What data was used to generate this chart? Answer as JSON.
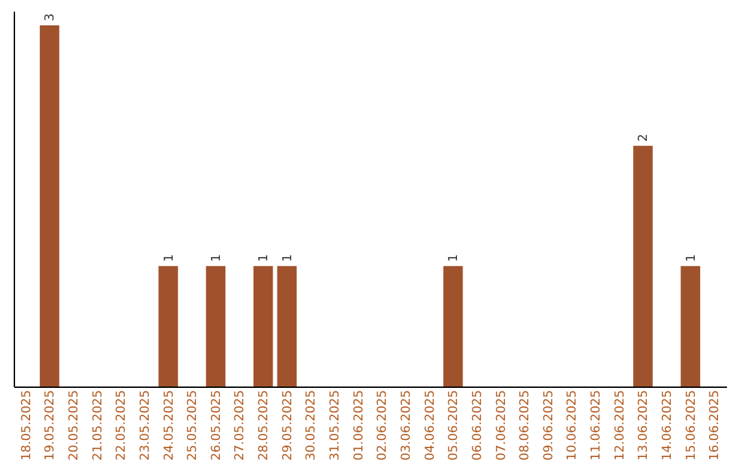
{
  "chart_data": {
    "type": "bar",
    "categories": [
      "18.05.2025",
      "19.05.2025",
      "20.05.2025",
      "21.05.2025",
      "22.05.2025",
      "23.05.2025",
      "24.05.2025",
      "25.05.2025",
      "26.05.2025",
      "27.05.2025",
      "28.05.2025",
      "29.05.2025",
      "30.05.2025",
      "31.05.2025",
      "01.06.2025",
      "02.06.2025",
      "03.06.2025",
      "04.06.2025",
      "05.06.2025",
      "06.06.2025",
      "07.06.2025",
      "08.06.2025",
      "09.06.2025",
      "10.06.2025",
      "11.06.2025",
      "12.06.2025",
      "13.06.2025",
      "14.06.2025",
      "15.06.2025",
      "16.06.2025"
    ],
    "values": [
      0,
      3,
      0,
      0,
      0,
      0,
      1,
      0,
      1,
      0,
      1,
      1,
      0,
      0,
      0,
      0,
      0,
      0,
      1,
      0,
      0,
      0,
      0,
      0,
      0,
      0,
      2,
      0,
      1,
      0
    ],
    "value_labels": [
      null,
      "3",
      null,
      null,
      null,
      null,
      "1",
      null,
      "1",
      null,
      "1",
      "1",
      null,
      null,
      null,
      null,
      null,
      null,
      "1",
      null,
      null,
      null,
      null,
      null,
      null,
      null,
      "2",
      null,
      "1",
      null
    ],
    "color": "#a0522d",
    "tick_labels": "x",
    "grid": false
  }
}
